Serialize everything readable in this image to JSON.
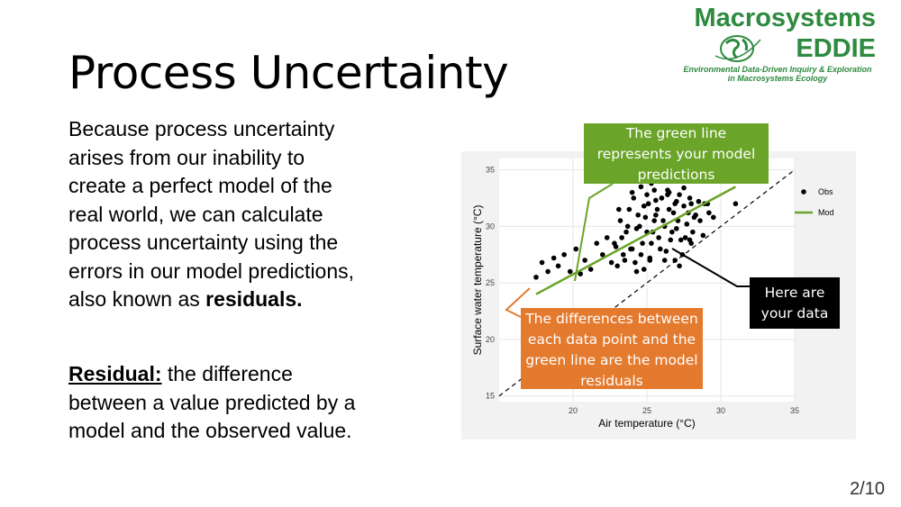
{
  "slide": {
    "title": "Process Uncertainty",
    "page_number": "2/10",
    "body_lines": [
      "Because process uncertainty",
      "arises from our inability to",
      "create a perfect model of the",
      "real world, we can calculate",
      "process uncertainty using the",
      "errors in our model predictions,"
    ],
    "body_last_prefix": "also known as ",
    "body_last_bold": "residuals.",
    "residual_term": "Residual:",
    "residual_line1": " the difference",
    "residual_line2": "between a value predicted by a",
    "residual_line3": "model and the observed value."
  },
  "logo": {
    "line1": "Macrosystems",
    "line2": "EDDIE",
    "line3": "Environmental Data-Driven Inquiry & Exploration",
    "line4": "in Macrosystems Ecology"
  },
  "callouts": {
    "green": [
      "The green line",
      "represents your model",
      "predictions"
    ],
    "black": [
      "Here are",
      "your data"
    ],
    "orange": [
      "The differences between",
      "each data point and the",
      "green line are the model",
      "residuals"
    ]
  },
  "colors": {
    "green_accent": "#6aa428",
    "orange_accent": "#e47a2e",
    "logo_green": "#2d8a3e"
  },
  "chart_data": {
    "type": "scatter",
    "title": "",
    "xlabel": "Air temperature (°C)",
    "ylabel": "Surface water temperature (°C)",
    "xlim": [
      15,
      35
    ],
    "ylim": [
      14.5,
      36
    ],
    "x_ticks": [
      20,
      25,
      30,
      35
    ],
    "y_ticks": [
      15,
      20,
      25,
      30,
      35
    ],
    "grid": true,
    "legend_position": "top-right",
    "series": [
      {
        "name": "Obs",
        "kind": "points",
        "color": "#000000",
        "x": [
          17.5,
          17.9,
          18.3,
          18.7,
          19.0,
          19.4,
          19.8,
          20.2,
          20.5,
          20.8,
          21.2,
          21.6,
          22.0,
          22.3,
          22.6,
          22.9,
          23.2,
          23.4,
          23.6,
          23.8,
          24.0,
          24.1,
          24.3,
          24.5,
          24.6,
          24.8,
          25.0,
          25.1,
          25.3,
          25.5,
          25.6,
          25.8,
          26.0,
          26.2,
          26.3,
          26.5,
          26.7,
          26.9,
          27.1,
          27.3,
          27.5,
          27.7,
          27.9,
          28.1,
          28.3,
          28.6,
          28.9,
          29.2,
          29.5,
          22.8,
          23.0,
          23.3,
          23.5,
          23.7,
          23.9,
          24.2,
          24.4,
          24.7,
          24.9,
          25.2,
          25.4,
          25.7,
          25.9,
          26.1,
          26.4,
          26.6,
          26.8,
          27.0,
          27.2,
          27.4,
          27.6,
          27.8,
          28.0,
          28.2,
          28.5,
          28.8,
          29.1,
          24.0,
          24.6,
          25.0,
          25.5,
          26.0,
          26.5,
          27.0,
          27.5,
          28.0,
          24.3,
          25.2,
          26.2,
          27.2,
          31.0,
          23.1,
          24.8,
          25.6,
          26.9,
          27.9,
          25.3,
          26.4
        ],
        "y": [
          25.5,
          26.8,
          26.0,
          27.2,
          26.5,
          27.5,
          26.0,
          28.0,
          25.8,
          27.0,
          26.2,
          28.5,
          27.5,
          29.0,
          26.8,
          28.2,
          30.5,
          27.5,
          29.5,
          31.5,
          28.0,
          32.5,
          29.8,
          30.0,
          27.5,
          31.8,
          29.5,
          32.0,
          28.5,
          30.5,
          31.0,
          29.0,
          32.5,
          30.0,
          27.8,
          31.5,
          29.5,
          32.0,
          30.5,
          28.8,
          31.8,
          30.2,
          32.5,
          29.5,
          31.0,
          30.5,
          32.0,
          31.2,
          30.8,
          28.5,
          26.5,
          29.0,
          27.0,
          30.0,
          28.0,
          26.8,
          31.0,
          28.5,
          30.8,
          27.0,
          29.5,
          31.5,
          28.0,
          30.5,
          32.8,
          28.8,
          31.2,
          29.8,
          32.8,
          27.5,
          29.0,
          31.2,
          28.5,
          30.8,
          32.2,
          29.2,
          32.0,
          33.0,
          33.5,
          32.8,
          33.2,
          32.5,
          33.0,
          32.2,
          33.4,
          32.0,
          26.0,
          27.2,
          27.0,
          26.5,
          32.0,
          31.5,
          26.2,
          32.3,
          27.0,
          28.8,
          33.8,
          33.2
        ]
      },
      {
        "name": "Mod",
        "kind": "line",
        "color": "#6aa428",
        "x": [
          17.5,
          31.0
        ],
        "y": [
          24.0,
          33.5
        ]
      },
      {
        "name": "",
        "kind": "reference-line",
        "color": "#000000",
        "x": [
          15.0,
          35.0
        ],
        "y": [
          15.0,
          35.0
        ]
      }
    ]
  }
}
